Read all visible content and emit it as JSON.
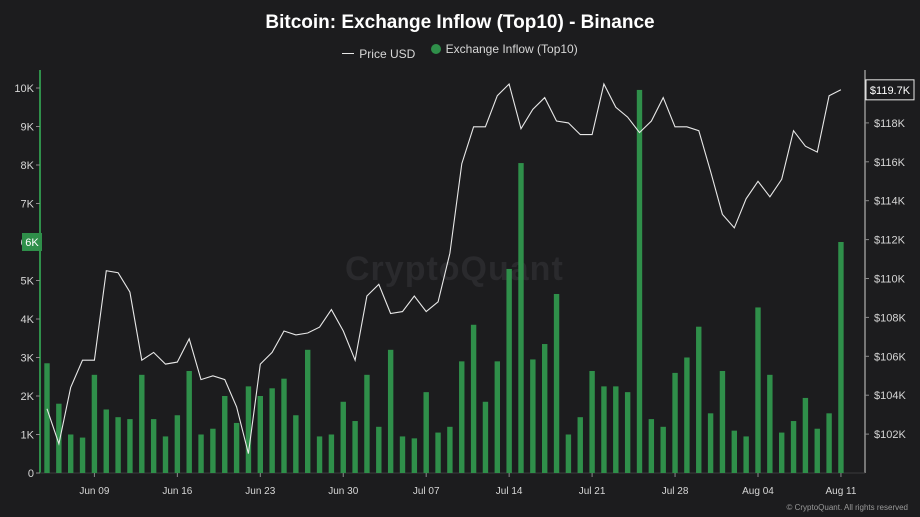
{
  "watermark": "CryptoQuant",
  "credit": "© CryptoQuant. All rights reserved",
  "colors": {
    "background": "#1c1c1e",
    "bar": "#2f8f4a",
    "price": "#e8e8e8",
    "axis": "#2f8f4a"
  },
  "chart_data": {
    "type": "bar",
    "title": "Bitcoin: Exchange Inflow (Top10) - Binance",
    "legend": [
      "Price USD",
      "Exchange Inflow (Top10)"
    ],
    "legend_position": "top-center",
    "x_ticks": [
      "Jun 09",
      "Jun 16",
      "Jun 23",
      "Jun 30",
      "Jul 07",
      "Jul 14",
      "Jul 21",
      "Jul 28",
      "Aug 04",
      "Aug 11"
    ],
    "left_ticks": [
      "0",
      "1K",
      "2K",
      "3K",
      "4K",
      "5K",
      "6K",
      "7K",
      "8K",
      "9K",
      "10K"
    ],
    "right_ticks": [
      "$102K",
      "$104K",
      "$106K",
      "$108K",
      "$110K",
      "$112K",
      "$114K",
      "$116K",
      "$118K"
    ],
    "left_marker": "6K",
    "right_marker": "$119.7K",
    "left_ylim": [
      0,
      10000
    ],
    "right_ylim": [
      100000,
      120000
    ],
    "x_start": "Jun 05",
    "dates": [
      "Jun 05",
      "Jun 06",
      "Jun 07",
      "Jun 08",
      "Jun 09",
      "Jun 10",
      "Jun 11",
      "Jun 12",
      "Jun 13",
      "Jun 14",
      "Jun 15",
      "Jun 16",
      "Jun 17",
      "Jun 18",
      "Jun 19",
      "Jun 20",
      "Jun 21",
      "Jun 22",
      "Jun 23",
      "Jun 24",
      "Jun 25",
      "Jun 26",
      "Jun 27",
      "Jun 28",
      "Jun 29",
      "Jun 30",
      "Jul 01",
      "Jul 02",
      "Jul 03",
      "Jul 04",
      "Jul 05",
      "Jul 06",
      "Jul 07",
      "Jul 08",
      "Jul 09",
      "Jul 10",
      "Jul 11",
      "Jul 12",
      "Jul 13",
      "Jul 14",
      "Jul 15",
      "Jul 16",
      "Jul 17",
      "Jul 18",
      "Jul 19",
      "Jul 20",
      "Jul 21",
      "Jul 22",
      "Jul 23",
      "Jul 24",
      "Jul 25",
      "Jul 26",
      "Jul 27",
      "Jul 28",
      "Jul 29",
      "Jul 30",
      "Jul 31",
      "Aug 01",
      "Aug 02",
      "Aug 03",
      "Aug 04",
      "Aug 05",
      "Aug 06",
      "Aug 07",
      "Aug 08",
      "Aug 09",
      "Aug 10",
      "Aug 11"
    ],
    "series": [
      {
        "name": "Exchange Inflow (Top10)",
        "type": "bar",
        "axis": "left",
        "values": [
          2850,
          1800,
          1000,
          920,
          2550,
          1650,
          1450,
          1400,
          2550,
          1400,
          950,
          1500,
          2650,
          1000,
          1150,
          2000,
          1300,
          2250,
          2000,
          2200,
          2450,
          1500,
          3200,
          950,
          1000,
          1850,
          1350,
          2550,
          1200,
          3200,
          950,
          900,
          2100,
          1050,
          1200,
          2900,
          3850,
          1850,
          2900,
          5300,
          8050,
          2950,
          3350,
          4650,
          1000,
          1450,
          2650,
          2250,
          2250,
          2100,
          9950,
          1400,
          1200,
          2600,
          3000,
          3800,
          1550,
          2650,
          1100,
          950,
          4300,
          2550,
          1050,
          1350,
          1950,
          1150,
          1550,
          6000
        ]
      },
      {
        "name": "Price USD",
        "type": "line",
        "axis": "right",
        "values": [
          103300,
          101500,
          104400,
          105800,
          105800,
          110400,
          110300,
          109300,
          105800,
          106200,
          105600,
          105700,
          106900,
          104800,
          105000,
          104800,
          103400,
          101000,
          105600,
          106200,
          107300,
          107100,
          107200,
          107500,
          108400,
          107300,
          105800,
          109100,
          109700,
          108200,
          108300,
          109100,
          108300,
          108800,
          111300,
          115900,
          117800,
          117800,
          119400,
          120000,
          117700,
          118700,
          119300,
          118100,
          118000,
          117400,
          117400,
          120000,
          118800,
          118300,
          117500,
          118100,
          119300,
          117800,
          117800,
          117600,
          115500,
          113300,
          112600,
          114100,
          115000,
          114200,
          115100,
          117600,
          116800,
          116500,
          119400,
          119700
        ]
      }
    ]
  }
}
